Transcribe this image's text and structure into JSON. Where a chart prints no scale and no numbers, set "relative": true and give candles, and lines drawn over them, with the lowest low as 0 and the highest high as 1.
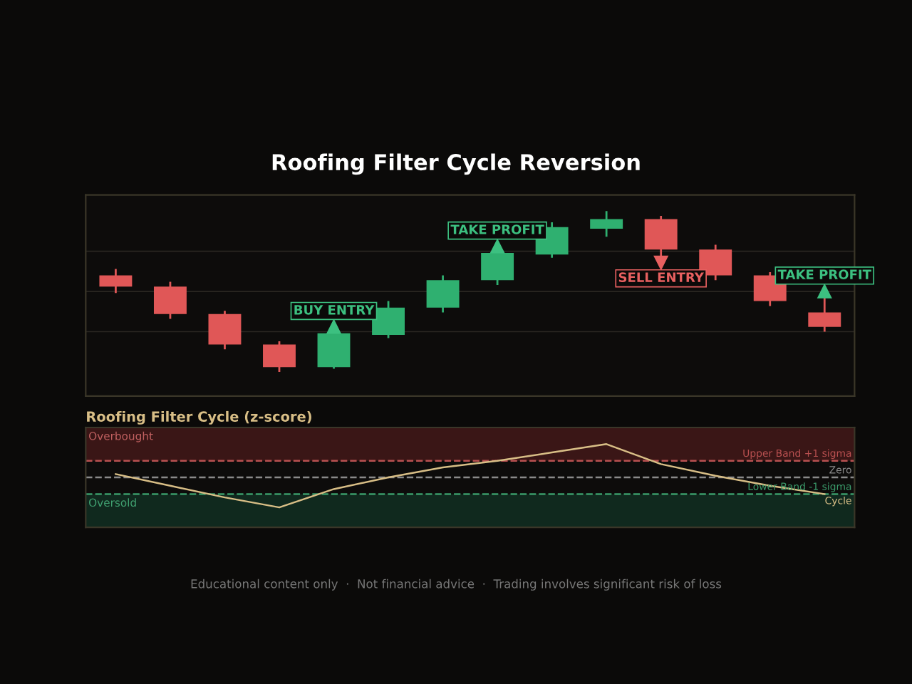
{
  "chart_data": [
    {
      "type": "candlestick",
      "title": "Roofing Filter Cycle Reversion",
      "relative": true,
      "categories": [
        null,
        null,
        null,
        null,
        null,
        null,
        null,
        null,
        null,
        null,
        null,
        null,
        null,
        null
      ],
      "ohlc": [
        [
          0.6,
          0.64,
          0.49,
          0.53
        ],
        [
          0.53,
          0.56,
          0.33,
          0.36
        ],
        [
          0.36,
          0.38,
          0.14,
          0.17
        ],
        [
          0.17,
          0.19,
          0,
          0.03
        ],
        [
          0.03,
          0.24,
          0.02,
          0.24
        ],
        [
          0.23,
          0.44,
          0.21,
          0.4
        ],
        [
          0.4,
          0.6,
          0.37,
          0.57
        ],
        [
          0.57,
          0.74,
          0.54,
          0.74
        ],
        [
          0.73,
          0.93,
          0.71,
          0.9
        ],
        [
          0.89,
          1,
          0.84,
          0.95
        ],
        [
          0.95,
          0.97,
          0.72,
          0.76
        ],
        [
          0.76,
          0.79,
          0.57,
          0.6
        ],
        [
          0.6,
          0.62,
          0.41,
          0.44
        ],
        [
          0.37,
          0.46,
          0.25,
          0.28
        ]
      ],
      "colors": [
        "#e05757",
        "#e05757",
        "#e05757",
        "#e05757",
        "#2fb070",
        "#2fb070",
        "#2fb070",
        "#2fb070",
        "#2fb070",
        "#2fb070",
        "#e05757",
        "#e05757",
        "#e05757",
        "#e05757"
      ],
      "annotations": [
        {
          "text": "BUY ENTRY",
          "y": 0.24
        },
        {
          "text": "TAKE PROFIT",
          "y": 0.74
        },
        {
          "text": "SELL ENTRY",
          "y": 0.72
        },
        {
          "text": "TAKE PROFIT",
          "y": 0.46
        },
        "Educational content only  ·  Not financial advice  ·  Trading involves significant risk of loss"
      ],
      "grid": "y"
    },
    {
      "type": "line",
      "title": "Roofing Filter Cycle (z-score)",
      "categories": [
        null,
        null,
        null,
        null,
        null,
        null,
        null,
        null,
        null,
        null,
        null,
        null,
        null,
        null
      ],
      "series": [
        {
          "name": "Cycle",
          "color": "#d8be86",
          "values": [
            0.2,
            -0.5,
            -1.2,
            -1.8,
            -0.7,
            0.0,
            0.6,
            1.0,
            1.5,
            2.0,
            0.8,
            0.1,
            -0.5,
            -1.0
          ]
        }
      ],
      "ylim": [
        -3,
        3
      ],
      "ref_lines": [
        {
          "axis": "y",
          "value": 1,
          "label": "Upper Band +1 sigma",
          "color": "#b85050",
          "line_style": "dashed"
        },
        {
          "axis": "y",
          "value": 0,
          "label": "Zero",
          "color": "#8a8a8a",
          "line_style": "dashed"
        },
        {
          "axis": "y",
          "value": -1,
          "label": "Lower Band -1 sigma",
          "color": "#3a9a6a",
          "line_style": "dashed"
        }
      ],
      "bands": [
        {
          "axis": "y",
          "from": 1,
          "to": 3,
          "label": "Overbought",
          "color": "#3a1616"
        },
        {
          "axis": "y",
          "from": -3,
          "to": -1,
          "label": "Oversold",
          "color": "#10291e"
        }
      ],
      "grid": false,
      "marker": "none",
      "line_style": "solid"
    }
  ]
}
